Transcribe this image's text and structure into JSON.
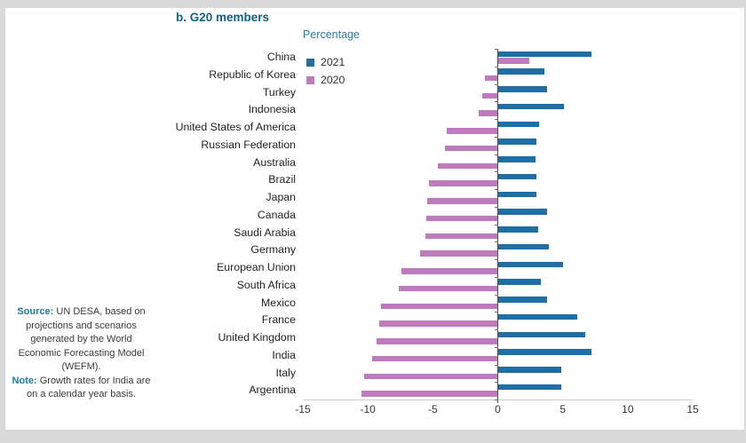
{
  "page": {
    "panel_label": "b. G20 members"
  },
  "notes": {
    "source_label": "Source:",
    "source_text": "UN DESA, based on projections and scenarios generated by the World Economic Forecasting Model (WEFM).",
    "note_label": "Note:",
    "note_text": "Growth rates for India are on a calendar year basis."
  },
  "colors": {
    "series_2021": "#1f6fa6",
    "series_2020": "#be7abc",
    "title_teal": "#15617d",
    "axis_label_teal": "#2a7da0",
    "axis_line": "#4a4a4a",
    "page_background": "#d9d9d9",
    "panel_background": "#ffffff"
  },
  "chart_data": {
    "type": "bar",
    "orientation": "horizontal",
    "title": "b. G20 members",
    "xlabel": "Percentage",
    "xlim": [
      -15,
      15
    ],
    "xticks": [
      -15,
      -10,
      -5,
      0,
      5,
      10,
      15
    ],
    "grid": false,
    "legend_position": "top-left",
    "categories": [
      "China",
      "Republic of Korea",
      "Turkey",
      "Indonesia",
      "United States of America",
      "Russian Federation",
      "Australia",
      "Brazil",
      "Japan",
      "Canada",
      "Saudi Arabia",
      "Germany",
      "European Union",
      "South Africa",
      "Mexico",
      "France",
      "United Kingdom",
      "India",
      "Italy",
      "Argentina"
    ],
    "series": [
      {
        "name": "2021",
        "color": "#1f6fa6",
        "values": [
          7.2,
          3.6,
          3.8,
          5.1,
          3.2,
          3.0,
          2.9,
          3.0,
          3.0,
          3.8,
          3.1,
          3.9,
          5.0,
          3.3,
          3.8,
          6.1,
          6.7,
          7.2,
          4.9,
          4.9
        ]
      },
      {
        "name": "2020",
        "color": "#be7abc",
        "values": [
          2.4,
          -1.0,
          -1.2,
          -1.5,
          -3.9,
          -4.1,
          -4.6,
          -5.3,
          -5.4,
          -5.5,
          -5.6,
          -6.0,
          -7.4,
          -7.6,
          -9.0,
          -9.1,
          -9.3,
          -9.7,
          -10.3,
          -10.5
        ]
      }
    ]
  }
}
